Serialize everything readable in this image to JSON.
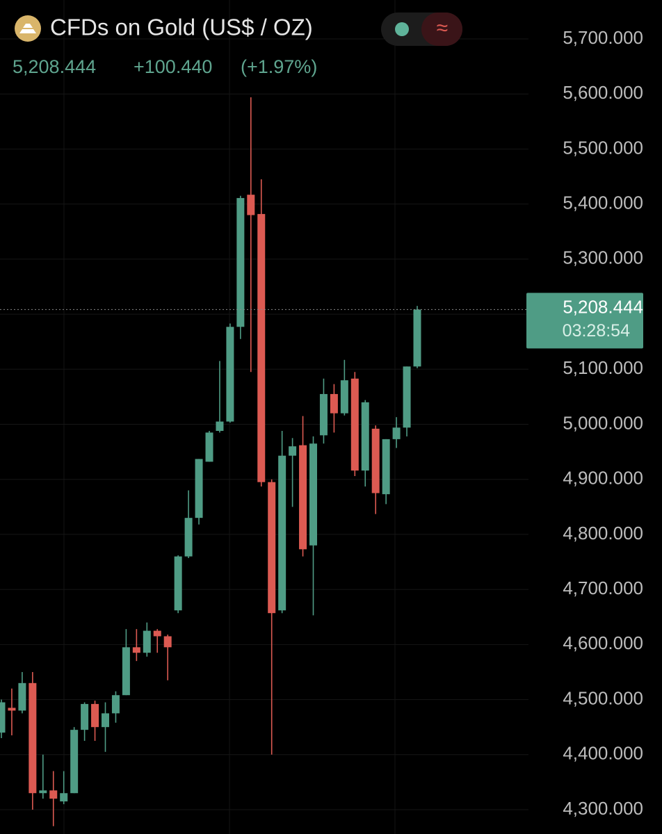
{
  "chart_data": {
    "type": "candlestick",
    "title": "CFDs on Gold (US$ / OZ)",
    "last_price": {
      "value": 5208.444,
      "label": "5,208.444"
    },
    "change": {
      "value": 100.44,
      "label": "+100.440"
    },
    "change_pct": {
      "value": 1.97,
      "label": "(+1.97%)"
    },
    "countdown": "03:28:54",
    "up_color": "#4f9c85",
    "down_color": "#dc5a52",
    "open": [
      4440,
      4485,
      4480,
      4530,
      4330,
      4335,
      4315,
      4330,
      4445,
      4492,
      4450,
      4475,
      4508,
      4595,
      4585,
      4625,
      4615,
      4662,
      4760,
      4830,
      4932,
      4988,
      5005,
      5177,
      5417,
      5382,
      4895,
      4662,
      4943,
      4962,
      4780,
      4980,
      5055,
      5020,
      5083,
      4916,
      4992,
      4873,
      4973,
      4994,
      5105
    ],
    "high": [
      4500,
      4520,
      4550,
      4550,
      4400,
      4370,
      4370,
      4450,
      4495,
      4498,
      4495,
      4515,
      4628,
      4628,
      4640,
      4628,
      4618,
      4762,
      4880,
      4937,
      4988,
      5115,
      5183,
      5415,
      5594,
      5445,
      4900,
      4988,
      4975,
      5015,
      4978,
      5083,
      5073,
      5117,
      5095,
      5044,
      4998,
      4973,
      5013,
      5105,
      5215
    ],
    "low": [
      4430,
      4435,
      4475,
      4300,
      4320,
      4270,
      4310,
      4330,
      4425,
      4425,
      4405,
      4458,
      4508,
      4570,
      4578,
      4585,
      4535,
      4657,
      4757,
      4818,
      4932,
      4985,
      5003,
      5155,
      5095,
      4887,
      4400,
      4657,
      4850,
      4760,
      4653,
      4965,
      4985,
      5016,
      4906,
      4887,
      4837,
      4855,
      4957,
      4978,
      5102
    ],
    "close": [
      4495,
      4480,
      4530,
      4330,
      4335,
      4320,
      4330,
      4445,
      4492,
      4450,
      4475,
      4508,
      4595,
      4585,
      4625,
      4615,
      4595,
      4760,
      4830,
      4937,
      4985,
      5005,
      5177,
      5411,
      5380,
      4895,
      4657,
      4943,
      4960,
      4773,
      4965,
      5055,
      5020,
      5080,
      4916,
      5040,
      4875,
      4973,
      4994,
      5105,
      5208.444
    ],
    "ylim": [
      4300,
      5700
    ],
    "yticks": [
      {
        "value": 4300,
        "label": "4,300.000"
      },
      {
        "value": 4400,
        "label": "4,400.000"
      },
      {
        "value": 4500,
        "label": "4,500.000"
      },
      {
        "value": 4600,
        "label": "4,600.000"
      },
      {
        "value": 4700,
        "label": "4,700.000"
      },
      {
        "value": 4800,
        "label": "4,800.000"
      },
      {
        "value": 4900,
        "label": "4,900.000"
      },
      {
        "value": 5000,
        "label": "5,000.000"
      },
      {
        "value": 5100,
        "label": "5,100.000"
      },
      {
        "value": 5200,
        "label": "5,200.000"
      },
      {
        "value": 5300,
        "label": "5,300.000"
      },
      {
        "value": 5400,
        "label": "5,400.000"
      },
      {
        "value": 5500,
        "label": "5,500.000"
      },
      {
        "value": 5600,
        "label": "5,600.000"
      },
      {
        "value": 5700,
        "label": "5,700.000"
      }
    ],
    "grid": true
  }
}
